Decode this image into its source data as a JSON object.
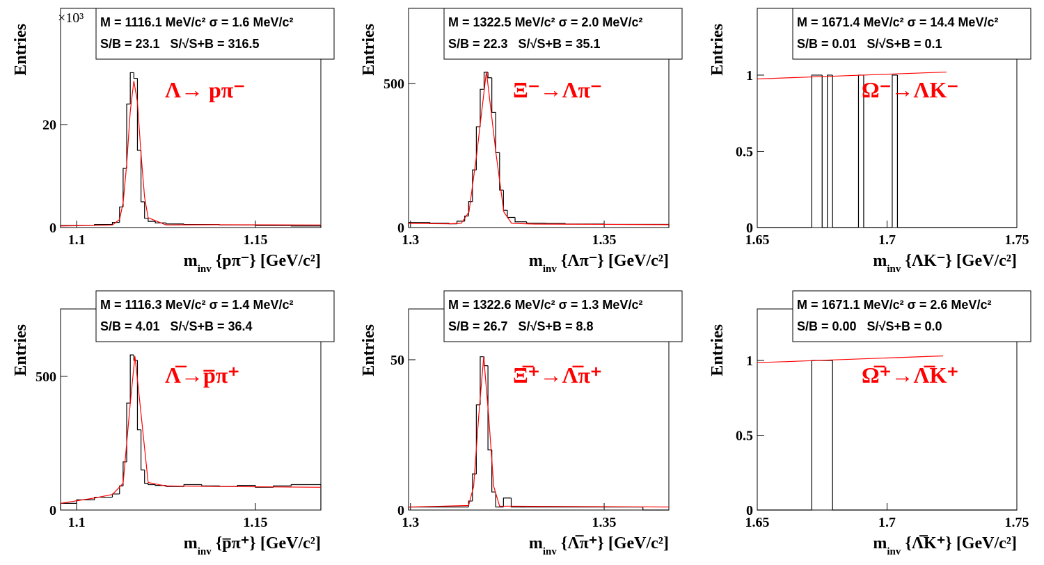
{
  "chart_data": [
    {
      "type": "histogram",
      "color": "#000000",
      "bins": [
        1.0955,
        1.105,
        1.11,
        1.112,
        1.113,
        1.114,
        1.115,
        1.116,
        1.117,
        1.118,
        1.119,
        1.12,
        1.122,
        1.125,
        1.13,
        1.14,
        1.15,
        1.16,
        1.1683
      ],
      "values": [
        0.4,
        0.6,
        1.0,
        4.0,
        11.5,
        24.0,
        30.1,
        29.0,
        15.0,
        5.0,
        1.8,
        1.2,
        0.9,
        0.7,
        0.6,
        0.5,
        0.4,
        0.3
      ],
      "fit": {
        "color": "#ff0000",
        "x": [
          1.0955,
          1.105,
          1.11,
          1.112,
          1.113,
          1.114,
          1.115,
          1.116,
          1.117,
          1.118,
          1.119,
          1.12,
          1.125,
          1.14,
          1.1683
        ],
        "values": [
          0.3,
          0.4,
          0.5,
          1.55,
          4.8,
          12.3,
          22.6,
          28.5,
          24.4,
          14.3,
          5.9,
          1.9,
          0.5,
          0.55,
          0.5
        ]
      },
      "xlim": [
        1.0955,
        1.1683
      ],
      "xticks": [
        1.1,
        1.15
      ],
      "ylim": [
        0,
        42.6
      ],
      "yticks": [
        0,
        20
      ],
      "y_multiplier": "×10³",
      "ylabel": "Entries",
      "xlabel": [
        "m",
        "inv",
        " {pπ⁻} [GeV/c²]"
      ],
      "stats": [
        "M = 1116.1 MeV/c² σ = 1.6 MeV/c²",
        "S/B = 23.1   S/√S+B = 316.5"
      ],
      "label": "Λ→ pπ⁻",
      "label_color": "#ff0000"
    },
    {
      "type": "histogram",
      "color": "#000000",
      "bins": [
        1.2995,
        1.305,
        1.31,
        1.312,
        1.314,
        1.315,
        1.316,
        1.317,
        1.318,
        1.319,
        1.32,
        1.321,
        1.322,
        1.323,
        1.324,
        1.325,
        1.327,
        1.33,
        1.335,
        1.34,
        1.35,
        1.3667
      ],
      "values": [
        18,
        15,
        13,
        22,
        40,
        90,
        200,
        350,
        480,
        539,
        520,
        400,
        260,
        130,
        60,
        35,
        20,
        15,
        14,
        12,
        11
      ],
      "fit": {
        "color": "#ff0000",
        "x": [
          1.2995,
          1.31,
          1.3131,
          1.3151,
          1.3171,
          1.3196,
          1.3221,
          1.3241,
          1.3261,
          1.332,
          1.35,
          1.3667
        ],
        "values": [
          14,
          13,
          14.7,
          54,
          255,
          542,
          255,
          54,
          14.7,
          12,
          11,
          10
        ]
      },
      "xlim": [
        1.2995,
        1.3667
      ],
      "xticks": [
        1.3,
        1.35
      ],
      "ylim": [
        0,
        761
      ],
      "yticks": [
        0,
        500
      ],
      "ylabel": "Entries",
      "xlabel": [
        "m",
        "inv",
        " {Λπ⁻} [GeV/c²]"
      ],
      "stats": [
        "M = 1322.5 MeV/c² σ = 2.0 MeV/c²",
        "S/B = 22.3   S/√S+B = 35.1"
      ],
      "label": "Ξ⁻→Λπ⁻",
      "label_color": "#ff0000"
    },
    {
      "type": "histogram",
      "color": "#000000",
      "bins": [
        1.65,
        1.671,
        1.675,
        1.677,
        1.679,
        1.689,
        1.691,
        1.702,
        1.704,
        1.75
      ],
      "values": [
        0,
        1,
        0,
        1,
        0,
        1,
        0,
        1,
        0
      ],
      "fit": {
        "color": "#ff0000",
        "x": [
          1.65,
          1.7229
        ],
        "values": [
          0.975,
          1.02
        ]
      },
      "xlim": [
        1.65,
        1.75
      ],
      "xticks": [
        1.65,
        1.7,
        1.75
      ],
      "ylim": [
        0,
        1.438
      ],
      "yticks": [
        0,
        0.5,
        1
      ],
      "ylabel": "Entries",
      "xlabel": [
        "m",
        "inv",
        " {ΛK⁻} [GeV/c²]"
      ],
      "stats": [
        "M = 1671.4 MeV/c² σ = 14.4 MeV/c²",
        "S/B = 0.01   S/√S+B = 0.1"
      ],
      "label": "Ω⁻→ΛK⁻",
      "label_color": "#ff0000"
    },
    {
      "type": "histogram",
      "color": "#000000",
      "bins": [
        1.0955,
        1.1,
        1.105,
        1.11,
        1.112,
        1.113,
        1.114,
        1.115,
        1.116,
        1.117,
        1.118,
        1.119,
        1.12,
        1.122,
        1.125,
        1.13,
        1.135,
        1.14,
        1.145,
        1.15,
        1.155,
        1.16,
        1.1683
      ],
      "values": [
        25,
        38,
        48,
        60,
        90,
        180,
        400,
        580,
        560,
        300,
        150,
        100,
        95,
        92,
        88,
        95,
        90,
        88,
        92,
        85,
        90,
        95
      ],
      "fit": {
        "color": "#ff0000",
        "x": [
          1.0955,
          1.105,
          1.11,
          1.113,
          1.115,
          1.1163,
          1.1175,
          1.12,
          1.125,
          1.14,
          1.1683
        ],
        "values": [
          25,
          45,
          58,
          100,
          400,
          575,
          425,
          103,
          90,
          88,
          85
        ]
      },
      "xlim": [
        1.0955,
        1.1683
      ],
      "xticks": [
        1.1,
        1.15
      ],
      "ylim": [
        0,
        752
      ],
      "yticks": [
        0,
        500
      ],
      "ylabel": "Entries",
      "xlabel": [
        "m",
        "inv",
        " {p̅π⁺} [GeV/c²]"
      ],
      "stats": [
        "M = 1116.3 MeV/c² σ = 1.4 MeV/c²",
        "S/B = 4.01   S/√S+B = 36.4"
      ],
      "label": "Λ̅→p̅π⁺",
      "label_color": "#ff0000"
    },
    {
      "type": "histogram",
      "color": "#000000",
      "bins": [
        1.2995,
        1.31,
        1.315,
        1.316,
        1.317,
        1.318,
        1.319,
        1.32,
        1.321,
        1.322,
        1.324,
        1.326,
        1.328,
        1.33,
        1.335,
        1.34,
        1.35,
        1.36,
        1.3667
      ],
      "values": [
        1,
        1,
        3,
        12,
        35,
        51,
        48,
        20,
        6,
        1,
        4,
        1,
        1,
        1,
        1,
        1,
        1,
        0
      ],
      "fit": {
        "color": "#ff0000",
        "x": [
          1.2995,
          1.315,
          1.3163,
          1.3176,
          1.3189,
          1.3202,
          1.3215,
          1.323,
          1.3667
        ],
        "values": [
          1,
          1.5,
          7.8,
          31,
          51,
          31,
          7.8,
          1.3,
          1
        ]
      },
      "xlim": [
        1.2995,
        1.3667
      ],
      "xticks": [
        1.3,
        1.35
      ],
      "ylim": [
        0,
        66.9
      ],
      "yticks": [
        0,
        50
      ],
      "ylabel": "Entries",
      "xlabel": [
        "m",
        "inv",
        " {Λ̅π⁺} [GeV/c²]"
      ],
      "stats": [
        "M = 1322.6 MeV/c² σ = 1.3 MeV/c²",
        "S/B = 26.7   S/√S+B = 8.8"
      ],
      "label": "Ξ̅⁺→Λ̅π⁺",
      "label_color": "#ff0000"
    },
    {
      "type": "histogram",
      "color": "#000000",
      "bins": [
        1.65,
        1.671,
        1.679,
        1.75
      ],
      "values": [
        0,
        1,
        0
      ],
      "fit": {
        "color": "#ff0000",
        "x": [
          1.65,
          1.7216
        ],
        "values": [
          0.985,
          1.03
        ]
      },
      "xlim": [
        1.65,
        1.75
      ],
      "xticks": [
        1.65,
        1.7,
        1.75
      ],
      "ylim": [
        0,
        1.344
      ],
      "yticks": [
        0,
        0.5,
        1
      ],
      "ylabel": "Entries",
      "xlabel": [
        "m",
        "inv",
        " {Λ̅K⁺} [GeV/c²]"
      ],
      "stats": [
        "M = 1671.1 MeV/c² σ = 2.6 MeV/c²",
        "S/B = 0.00   S/√S+B = 0.0"
      ],
      "label": "Ω̅⁺→Λ̅K⁺",
      "label_color": "#ff0000"
    }
  ]
}
